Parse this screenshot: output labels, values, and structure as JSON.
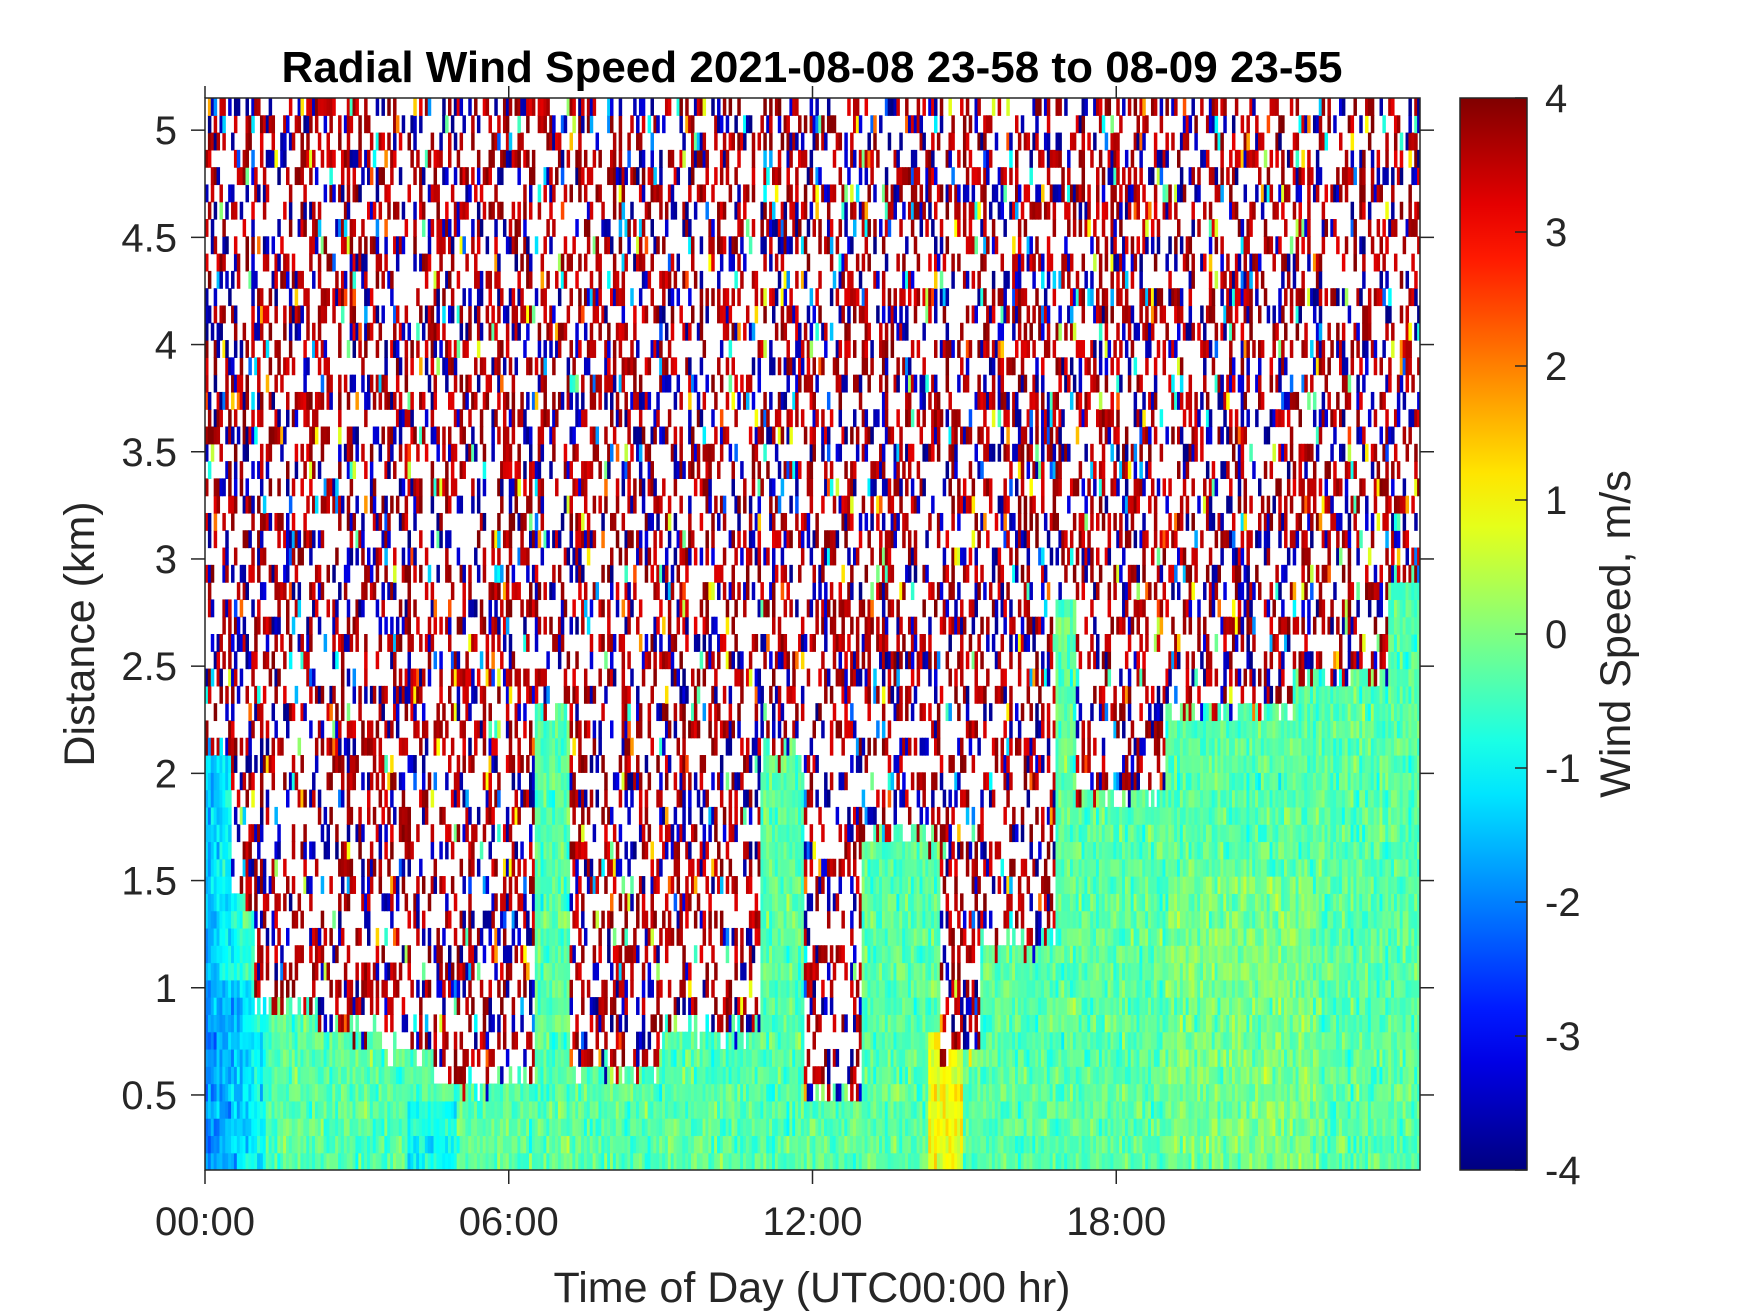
{
  "chart_data": {
    "type": "heatmap",
    "title": "Radial Wind Speed 2021-08-08 23-58 to 08-09 23-55",
    "xlabel": "Time of Day (UTC00:00 hr)",
    "ylabel": "Distance (km)",
    "xlim": [
      0,
      24
    ],
    "ylim": [
      0.15,
      5.15
    ],
    "x_ticks": [
      {
        "value": 0,
        "label": "00:00"
      },
      {
        "value": 6,
        "label": "06:00"
      },
      {
        "value": 12,
        "label": "12:00"
      },
      {
        "value": 18,
        "label": "18:00"
      }
    ],
    "y_ticks": [
      {
        "value": 0.5,
        "label": "0.5"
      },
      {
        "value": 1,
        "label": "1"
      },
      {
        "value": 1.5,
        "label": "1.5"
      },
      {
        "value": 2,
        "label": "2"
      },
      {
        "value": 2.5,
        "label": "2.5"
      },
      {
        "value": 3,
        "label": "3"
      },
      {
        "value": 3.5,
        "label": "3.5"
      },
      {
        "value": 4,
        "label": "4"
      },
      {
        "value": 4.5,
        "label": "4.5"
      },
      {
        "value": 5,
        "label": "5"
      }
    ],
    "colorbar": {
      "label": "Wind Speed, m/s",
      "colormap": "jet",
      "clim": [
        -4,
        4
      ],
      "ticks": [
        {
          "value": 4,
          "label": "4"
        },
        {
          "value": 3,
          "label": "3"
        },
        {
          "value": 2,
          "label": "2"
        },
        {
          "value": 1,
          "label": "1"
        },
        {
          "value": 0,
          "label": "0"
        },
        {
          "value": -1,
          "label": "-1"
        },
        {
          "value": -2,
          "label": "-2"
        },
        {
          "value": -3,
          "label": "-3"
        },
        {
          "value": -4,
          "label": "-4"
        }
      ]
    },
    "valid_signal_top_km": [
      {
        "from_hr": 0.0,
        "to_hr": 0.5,
        "km": 2.1
      },
      {
        "from_hr": 0.5,
        "to_hr": 1.0,
        "km": 1.4
      },
      {
        "from_hr": 1.0,
        "to_hr": 2.2,
        "km": 0.9
      },
      {
        "from_hr": 2.2,
        "to_hr": 3.5,
        "km": 0.8
      },
      {
        "from_hr": 3.5,
        "to_hr": 4.5,
        "km": 0.7
      },
      {
        "from_hr": 4.5,
        "to_hr": 6.5,
        "km": 0.55
      },
      {
        "from_hr": 6.5,
        "to_hr": 7.2,
        "km": 2.3
      },
      {
        "from_hr": 7.2,
        "to_hr": 9.0,
        "km": 0.6
      },
      {
        "from_hr": 9.0,
        "to_hr": 11.0,
        "km": 0.8
      },
      {
        "from_hr": 11.0,
        "to_hr": 11.8,
        "km": 2.1
      },
      {
        "from_hr": 11.8,
        "to_hr": 13.0,
        "km": 0.5
      },
      {
        "from_hr": 13.0,
        "to_hr": 14.5,
        "km": 1.7
      },
      {
        "from_hr": 14.5,
        "to_hr": 15.3,
        "km": 0.7
      },
      {
        "from_hr": 15.3,
        "to_hr": 16.8,
        "km": 1.2
      },
      {
        "from_hr": 16.8,
        "to_hr": 17.2,
        "km": 2.8
      },
      {
        "from_hr": 17.2,
        "to_hr": 19.0,
        "km": 1.9
      },
      {
        "from_hr": 19.0,
        "to_hr": 21.5,
        "km": 2.3
      },
      {
        "from_hr": 21.5,
        "to_hr": 23.4,
        "km": 2.45
      },
      {
        "from_hr": 23.4,
        "to_hr": 24.0,
        "km": 2.9
      }
    ],
    "typical_speed_in_signal_mps": -0.3,
    "colors": {
      "background": "#ffffff",
      "axis": "#262626"
    }
  }
}
